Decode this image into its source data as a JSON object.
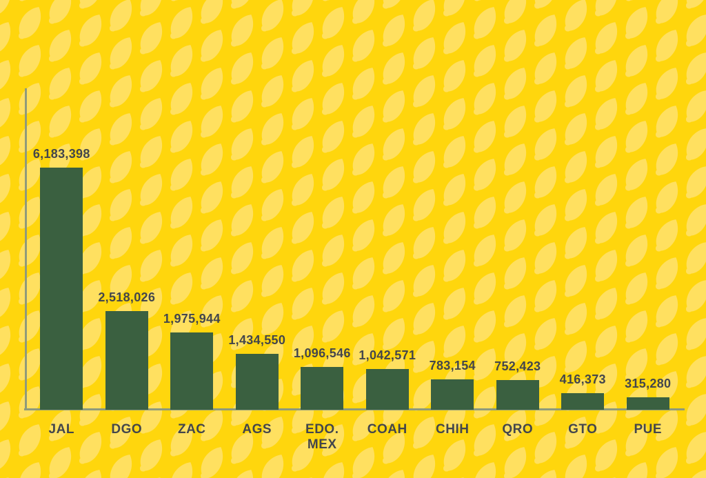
{
  "chart_data": {
    "type": "bar",
    "categories": [
      "JAL",
      "DGO",
      "ZAC",
      "AGS",
      "EDO. MEX",
      "COAH",
      "CHIH",
      "QRO",
      "GTO",
      "PUE"
    ],
    "values": [
      6183398,
      2518026,
      1975944,
      1434550,
      1096546,
      1042571,
      783154,
      752423,
      416373,
      315280
    ],
    "value_labels": [
      "6,183,398",
      "2,518,026",
      "1,975,944",
      "1,434,550",
      "1,096,546",
      "1,042,571",
      "783,154",
      "752,423",
      "416,373",
      "315,280"
    ],
    "title": "",
    "xlabel": "",
    "ylabel": "",
    "ylim": [
      0,
      6183398
    ],
    "grid": false,
    "legend": null,
    "axis_ticks_visible": false
  },
  "colors": {
    "background": "#ffd60d",
    "leaf_motif": "#ffe060",
    "bar": "#3a6040",
    "axis": "#8e9a7c",
    "text": "#43464c"
  },
  "icons": {
    "background_motif": "leaf-icon"
  }
}
